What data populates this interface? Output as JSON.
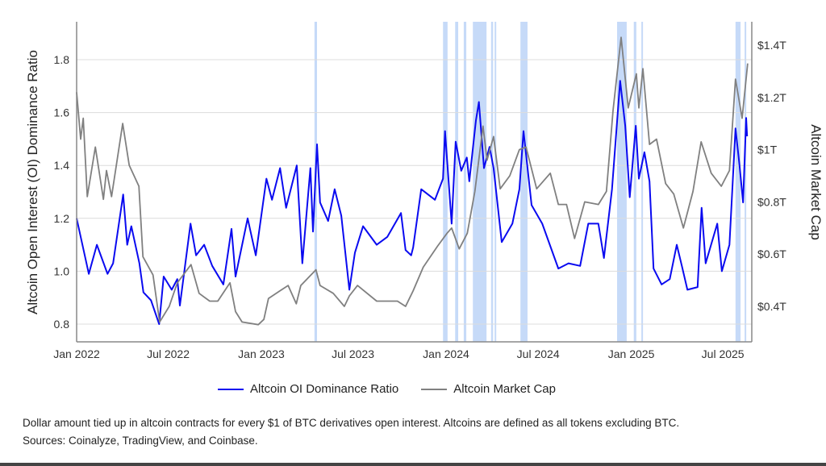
{
  "chart_data": {
    "type": "line",
    "title": "",
    "ylabel_left": "Altcoin Open Interest (OI) Dominance Ratio",
    "ylabel_right": "Altcoin Market Cap",
    "xlim": [
      "2022-01-01",
      "2025-08-22"
    ],
    "ylim_left": [
      0.73,
      1.94
    ],
    "ylim_right": [
      0.31,
      1.49
    ],
    "x_ticks": [
      {
        "date": "2022-01-01",
        "label": "Jan 2022"
      },
      {
        "date": "2022-07-01",
        "label": "Jul 2022"
      },
      {
        "date": "2023-01-01",
        "label": "Jan 2023"
      },
      {
        "date": "2023-07-01",
        "label": "Jul 2023"
      },
      {
        "date": "2024-01-01",
        "label": "Jan 2024"
      },
      {
        "date": "2024-07-01",
        "label": "Jul 2024"
      },
      {
        "date": "2025-01-01",
        "label": "Jan 2025"
      },
      {
        "date": "2025-07-01",
        "label": "Jul 2025"
      }
    ],
    "y_ticks_left": [
      {
        "value": 0.8,
        "label": "0.8"
      },
      {
        "value": 1.0,
        "label": "1.0"
      },
      {
        "value": 1.2,
        "label": "1.2"
      },
      {
        "value": 1.4,
        "label": "1.4"
      },
      {
        "value": 1.6,
        "label": "1.6"
      },
      {
        "value": 1.8,
        "label": "1.8"
      }
    ],
    "y_ticks_right": [
      {
        "value": 0.4,
        "label": "$0.4T"
      },
      {
        "value": 0.6,
        "label": "$0.6T"
      },
      {
        "value": 0.8,
        "label": "$0.8T"
      },
      {
        "value": 1.0,
        "label": "$1T"
      },
      {
        "value": 1.2,
        "label": "$1.2T"
      },
      {
        "value": 1.4,
        "label": "$1.4T"
      }
    ],
    "grid": true,
    "legend_position": "bottom",
    "series": [
      {
        "name": "Altcoin OI Dominance Ratio",
        "axis": "left",
        "color": "#0a0af0",
        "points": [
          [
            "2022-01-01",
            1.2
          ],
          [
            "2022-01-25",
            0.99
          ],
          [
            "2022-02-10",
            1.1
          ],
          [
            "2022-03-03",
            0.99
          ],
          [
            "2022-03-14",
            1.03
          ],
          [
            "2022-04-03",
            1.29
          ],
          [
            "2022-04-11",
            1.1
          ],
          [
            "2022-04-19",
            1.17
          ],
          [
            "2022-05-05",
            1.03
          ],
          [
            "2022-05-13",
            0.92
          ],
          [
            "2022-05-28",
            0.89
          ],
          [
            "2022-06-13",
            0.8
          ],
          [
            "2022-06-22",
            0.98
          ],
          [
            "2022-07-08",
            0.93
          ],
          [
            "2022-07-19",
            0.97
          ],
          [
            "2022-07-24",
            0.87
          ],
          [
            "2022-08-14",
            1.18
          ],
          [
            "2022-08-25",
            1.06
          ],
          [
            "2022-09-10",
            1.1
          ],
          [
            "2022-09-26",
            1.02
          ],
          [
            "2022-10-18",
            0.95
          ],
          [
            "2022-11-03",
            1.16
          ],
          [
            "2022-11-11",
            0.98
          ],
          [
            "2022-12-05",
            1.2
          ],
          [
            "2022-12-21",
            1.06
          ],
          [
            "2023-01-11",
            1.35
          ],
          [
            "2023-01-22",
            1.27
          ],
          [
            "2023-02-07",
            1.39
          ],
          [
            "2023-02-19",
            1.24
          ],
          [
            "2023-03-12",
            1.4
          ],
          [
            "2023-03-23",
            1.03
          ],
          [
            "2023-04-08",
            1.39
          ],
          [
            "2023-04-13",
            1.15
          ],
          [
            "2023-04-21",
            1.48
          ],
          [
            "2023-04-27",
            1.26
          ],
          [
            "2023-05-13",
            1.19
          ],
          [
            "2023-05-26",
            1.31
          ],
          [
            "2023-06-08",
            1.21
          ],
          [
            "2023-06-24",
            0.93
          ],
          [
            "2023-07-05",
            1.07
          ],
          [
            "2023-07-21",
            1.17
          ],
          [
            "2023-08-17",
            1.1
          ],
          [
            "2023-09-07",
            1.13
          ],
          [
            "2023-10-04",
            1.22
          ],
          [
            "2023-10-13",
            1.08
          ],
          [
            "2023-10-24",
            1.06
          ],
          [
            "2023-10-28",
            1.09
          ],
          [
            "2023-11-13",
            1.31
          ],
          [
            "2023-12-10",
            1.27
          ],
          [
            "2023-12-26",
            1.35
          ],
          [
            "2023-12-30",
            1.53
          ],
          [
            "2024-01-12",
            1.18
          ],
          [
            "2024-01-20",
            1.49
          ],
          [
            "2024-01-31",
            1.38
          ],
          [
            "2024-02-11",
            1.43
          ],
          [
            "2024-02-16",
            1.34
          ],
          [
            "2024-02-29",
            1.57
          ],
          [
            "2024-03-06",
            1.64
          ],
          [
            "2024-03-16",
            1.39
          ],
          [
            "2024-03-27",
            1.47
          ],
          [
            "2024-04-04",
            1.39
          ],
          [
            "2024-04-20",
            1.11
          ],
          [
            "2024-05-11",
            1.18
          ],
          [
            "2024-05-25",
            1.31
          ],
          [
            "2024-06-02",
            1.53
          ],
          [
            "2024-06-18",
            1.25
          ],
          [
            "2024-07-09",
            1.18
          ],
          [
            "2024-08-10",
            1.01
          ],
          [
            "2024-08-30",
            1.03
          ],
          [
            "2024-09-22",
            1.02
          ],
          [
            "2024-10-08",
            1.18
          ],
          [
            "2024-10-28",
            1.18
          ],
          [
            "2024-11-08",
            1.05
          ],
          [
            "2024-11-24",
            1.31
          ],
          [
            "2024-12-10",
            1.72
          ],
          [
            "2024-12-20",
            1.55
          ],
          [
            "2024-12-29",
            1.28
          ],
          [
            "2025-01-10",
            1.55
          ],
          [
            "2025-01-16",
            1.35
          ],
          [
            "2025-01-27",
            1.45
          ],
          [
            "2025-02-06",
            1.34
          ],
          [
            "2025-02-14",
            1.01
          ],
          [
            "2025-03-02",
            0.95
          ],
          [
            "2025-03-18",
            0.97
          ],
          [
            "2025-04-01",
            1.1
          ],
          [
            "2025-04-11",
            1.02
          ],
          [
            "2025-04-22",
            0.93
          ],
          [
            "2025-05-12",
            0.94
          ],
          [
            "2025-05-20",
            1.24
          ],
          [
            "2025-05-28",
            1.03
          ],
          [
            "2025-06-20",
            1.18
          ],
          [
            "2025-06-29",
            1.0
          ],
          [
            "2025-07-14",
            1.1
          ],
          [
            "2025-07-26",
            1.54
          ],
          [
            "2025-08-03",
            1.4
          ],
          [
            "2025-08-10",
            1.26
          ],
          [
            "2025-08-16",
            1.58
          ],
          [
            "2025-08-18",
            1.51
          ]
        ]
      },
      {
        "name": "Altcoin Market Cap",
        "axis": "right",
        "color": "#808080",
        "points": [
          [
            "2022-01-01",
            1.22
          ],
          [
            "2022-01-09",
            1.04
          ],
          [
            "2022-01-14",
            1.12
          ],
          [
            "2022-01-22",
            0.82
          ],
          [
            "2022-02-07",
            1.01
          ],
          [
            "2022-02-23",
            0.81
          ],
          [
            "2022-03-01",
            0.92
          ],
          [
            "2022-03-11",
            0.82
          ],
          [
            "2022-04-02",
            1.1
          ],
          [
            "2022-04-15",
            0.94
          ],
          [
            "2022-05-04",
            0.86
          ],
          [
            "2022-05-12",
            0.59
          ],
          [
            "2022-06-01",
            0.52
          ],
          [
            "2022-06-14",
            0.34
          ],
          [
            "2022-07-03",
            0.4
          ],
          [
            "2022-07-19",
            0.49
          ],
          [
            "2022-08-15",
            0.56
          ],
          [
            "2022-08-31",
            0.45
          ],
          [
            "2022-09-21",
            0.42
          ],
          [
            "2022-10-07",
            0.42
          ],
          [
            "2022-10-31",
            0.49
          ],
          [
            "2022-11-11",
            0.38
          ],
          [
            "2022-11-24",
            0.34
          ],
          [
            "2022-12-26",
            0.33
          ],
          [
            "2023-01-06",
            0.35
          ],
          [
            "2023-01-15",
            0.43
          ],
          [
            "2023-02-07",
            0.46
          ],
          [
            "2023-02-23",
            0.48
          ],
          [
            "2023-03-11",
            0.41
          ],
          [
            "2023-03-20",
            0.48
          ],
          [
            "2023-04-19",
            0.54
          ],
          [
            "2023-04-27",
            0.48
          ],
          [
            "2023-05-23",
            0.45
          ],
          [
            "2023-06-14",
            0.4
          ],
          [
            "2023-06-24",
            0.44
          ],
          [
            "2023-07-10",
            0.48
          ],
          [
            "2023-08-17",
            0.42
          ],
          [
            "2023-09-27",
            0.42
          ],
          [
            "2023-10-13",
            0.4
          ],
          [
            "2023-10-28",
            0.46
          ],
          [
            "2023-11-17",
            0.55
          ],
          [
            "2023-12-15",
            0.63
          ],
          [
            "2024-01-03",
            0.68
          ],
          [
            "2024-01-12",
            0.7
          ],
          [
            "2024-01-27",
            0.62
          ],
          [
            "2024-02-12",
            0.68
          ],
          [
            "2024-02-27",
            0.84
          ],
          [
            "2024-03-14",
            1.09
          ],
          [
            "2024-03-22",
            0.96
          ],
          [
            "2024-04-04",
            1.05
          ],
          [
            "2024-04-17",
            0.85
          ],
          [
            "2024-05-06",
            0.9
          ],
          [
            "2024-05-25",
            1.0
          ],
          [
            "2024-06-07",
            1.01
          ],
          [
            "2024-06-28",
            0.85
          ],
          [
            "2024-07-25",
            0.91
          ],
          [
            "2024-08-10",
            0.79
          ],
          [
            "2024-08-26",
            0.79
          ],
          [
            "2024-09-11",
            0.66
          ],
          [
            "2024-10-01",
            0.8
          ],
          [
            "2024-10-28",
            0.79
          ],
          [
            "2024-11-13",
            0.84
          ],
          [
            "2024-11-26",
            1.15
          ],
          [
            "2024-12-12",
            1.43
          ],
          [
            "2024-12-26",
            1.16
          ],
          [
            "2025-01-11",
            1.29
          ],
          [
            "2025-01-16",
            1.16
          ],
          [
            "2025-01-24",
            1.31
          ],
          [
            "2025-02-06",
            1.02
          ],
          [
            "2025-02-20",
            1.04
          ],
          [
            "2025-03-10",
            0.87
          ],
          [
            "2025-03-26",
            0.83
          ],
          [
            "2025-04-14",
            0.7
          ],
          [
            "2025-05-03",
            0.84
          ],
          [
            "2025-05-19",
            1.03
          ],
          [
            "2025-06-08",
            0.91
          ],
          [
            "2025-06-28",
            0.86
          ],
          [
            "2025-07-14",
            0.92
          ],
          [
            "2025-07-26",
            1.27
          ],
          [
            "2025-08-08",
            1.12
          ],
          [
            "2025-08-19",
            1.33
          ]
        ]
      }
    ],
    "shaded_periods": {
      "color": "#bcd4f7",
      "ranges": [
        [
          "2023-04-16",
          "2023-04-21"
        ],
        [
          "2023-12-26",
          "2024-01-04"
        ],
        [
          "2024-01-19",
          "2024-01-25"
        ],
        [
          "2024-02-05",
          "2024-02-10"
        ],
        [
          "2024-02-23",
          "2024-03-21"
        ],
        [
          "2024-03-30",
          "2024-04-03"
        ],
        [
          "2024-04-06",
          "2024-04-09"
        ],
        [
          "2024-05-27",
          "2024-06-10"
        ],
        [
          "2024-12-04",
          "2024-12-23"
        ],
        [
          "2025-01-06",
          "2025-01-11"
        ],
        [
          "2025-01-21",
          "2025-01-24"
        ],
        [
          "2025-07-26",
          "2025-08-05"
        ],
        [
          "2025-08-13",
          "2025-08-16"
        ]
      ]
    }
  },
  "legend": [
    {
      "label": "Altcoin OI Dominance Ratio",
      "color": "#0a0af0"
    },
    {
      "label": "Altcoin Market Cap",
      "color": "#808080"
    }
  ],
  "caption": "Dollar amount tied up in altcoin contracts for every $1 of BTC derivatives open interest. Altcoins are defined as all tokens excluding BTC. Sources: Coinalyze, TradingView, and Coinbase."
}
